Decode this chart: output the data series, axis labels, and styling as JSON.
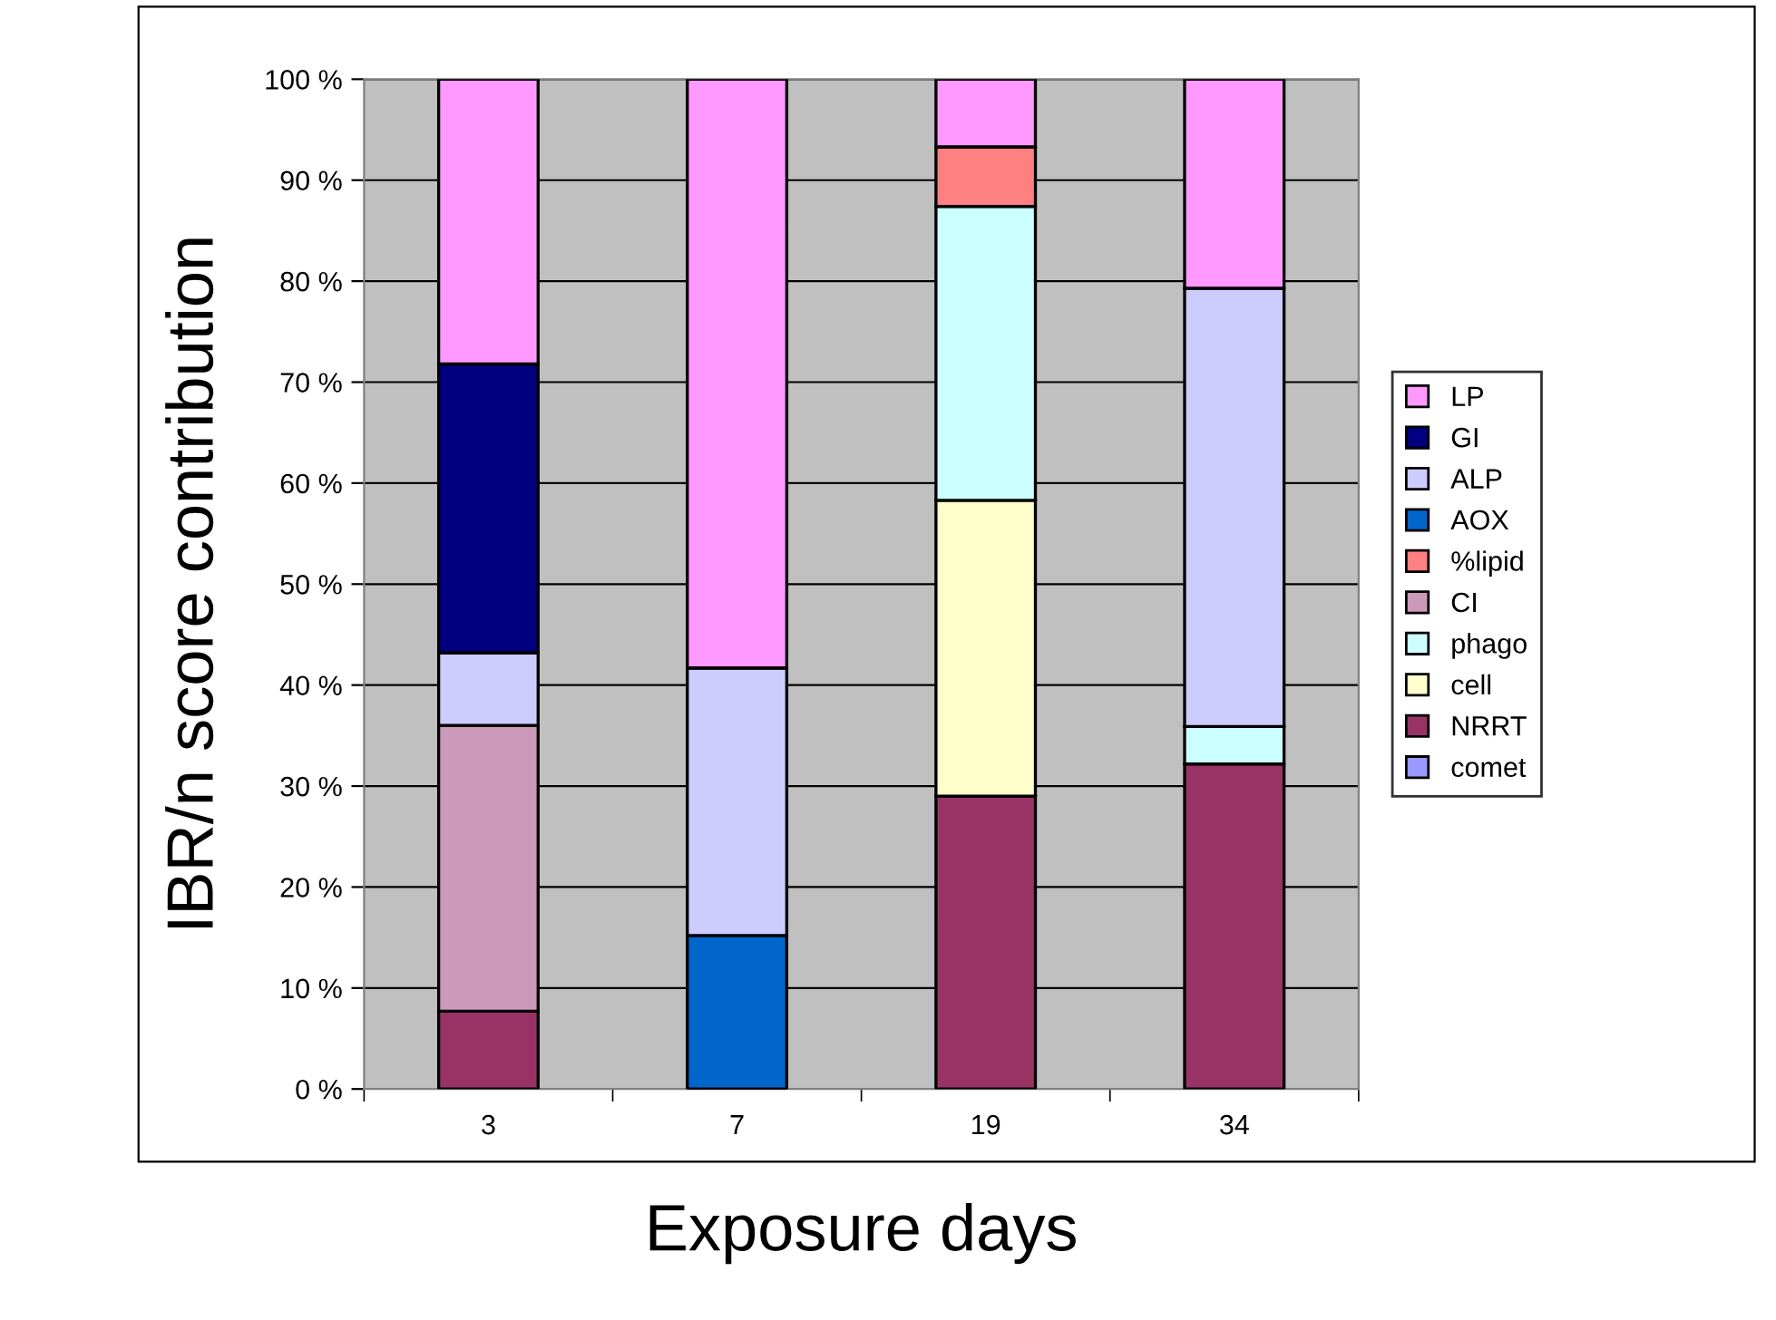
{
  "chart_data": {
    "type": "bar",
    "stacked": true,
    "xlabel": "Exposure days",
    "ylabel": "IBR/n score contribution",
    "categories": [
      "3",
      "7",
      "19",
      "34"
    ],
    "series": [
      {
        "name": "comet",
        "color": "#9999ff",
        "values": [
          0,
          0,
          0,
          0
        ]
      },
      {
        "name": "NRRT",
        "color": "#993366",
        "values": [
          7.7,
          0,
          29,
          32.2
        ]
      },
      {
        "name": "cell",
        "color": "#ffffcc",
        "values": [
          0,
          0,
          29.3,
          0
        ]
      },
      {
        "name": "phago",
        "color": "#ccffff",
        "values": [
          0,
          0,
          29.1,
          3.7
        ]
      },
      {
        "name": "CI",
        "color": "#cc99bb",
        "values": [
          28.3,
          0,
          0,
          0
        ]
      },
      {
        "name": "%lipid",
        "color": "#ff8080",
        "values": [
          0,
          0,
          5.9,
          0
        ]
      },
      {
        "name": "AOX",
        "color": "#0066cc",
        "values": [
          0,
          15.2,
          0,
          0
        ]
      },
      {
        "name": "ALP",
        "color": "#ccccff",
        "values": [
          7.2,
          26.5,
          0,
          43.4
        ]
      },
      {
        "name": "GI",
        "color": "#000080",
        "values": [
          28.6,
          0,
          0,
          0
        ]
      },
      {
        "name": "LP",
        "color": "#ff99ff",
        "values": [
          28.2,
          58.3,
          6.7,
          20.7
        ]
      }
    ],
    "ylim": [
      0,
      100
    ],
    "yticks": [
      {
        "value": 0,
        "label": "0 %"
      },
      {
        "value": 10,
        "label": "10 %"
      },
      {
        "value": 20,
        "label": "20 %"
      },
      {
        "value": 30,
        "label": "30 %"
      },
      {
        "value": 40,
        "label": "40 %"
      },
      {
        "value": 50,
        "label": "50 %"
      },
      {
        "value": 60,
        "label": "60 %"
      },
      {
        "value": 70,
        "label": "70 %"
      },
      {
        "value": 80,
        "label": "80 %"
      },
      {
        "value": 90,
        "label": "90 %"
      },
      {
        "value": 100,
        "label": "100 %"
      }
    ],
    "grid": "y",
    "legend": "right"
  }
}
